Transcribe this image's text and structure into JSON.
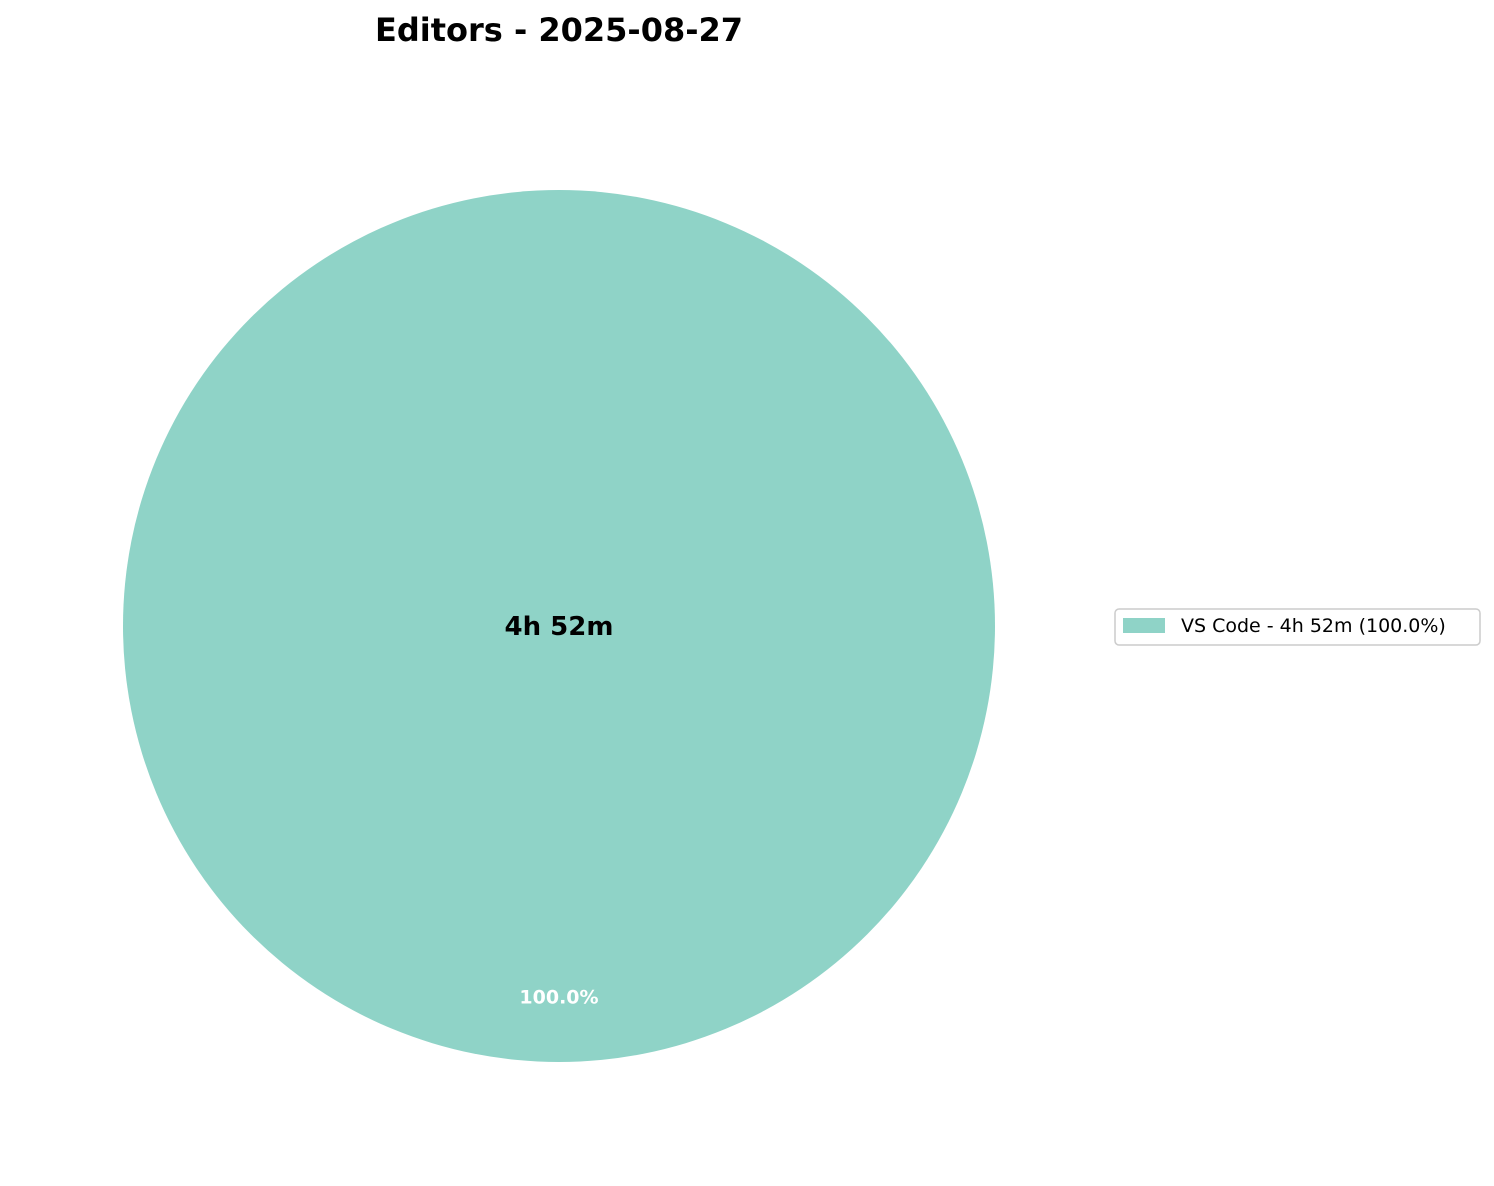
{
  "chart_data": {
    "type": "pie",
    "title": "Editors - 2025-08-27",
    "center_label": "4h 52m",
    "categories": [
      "VS Code"
    ],
    "values": [
      100.0
    ],
    "slices": [
      {
        "name": "VS Code",
        "value": 100.0,
        "duration": "4h 52m",
        "percent_label": "100.0%",
        "legend_label": "VS Code - 4h 52m (100.0%)",
        "color": "#8fd3c7"
      }
    ],
    "legend_position": "right"
  }
}
